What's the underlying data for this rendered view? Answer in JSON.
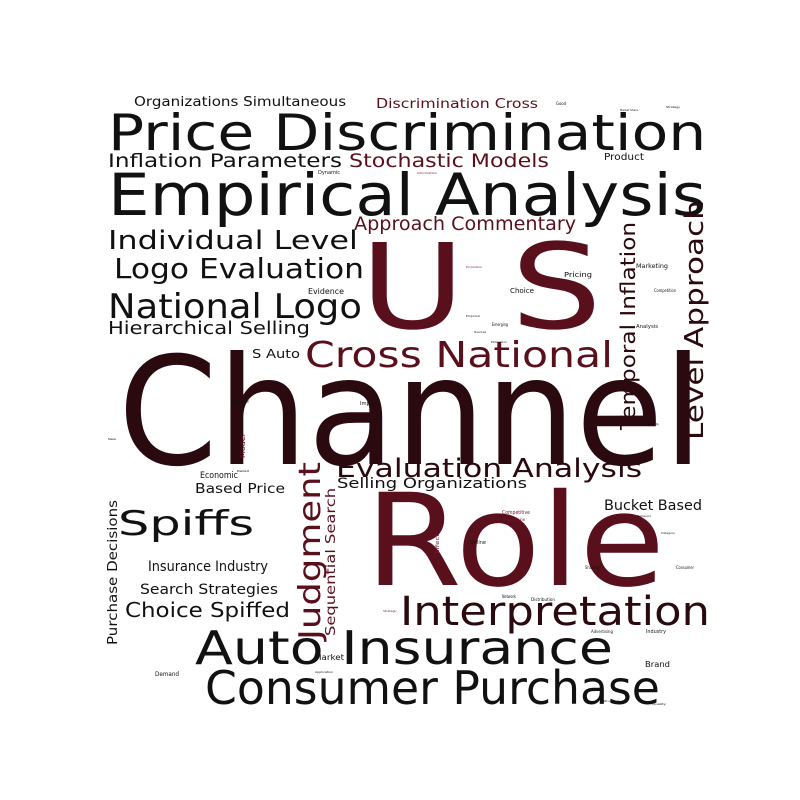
{
  "colors": {
    "black": "#111111",
    "dark": "#2a0a0f",
    "maroon": "#5a0f1c",
    "red": "#7a1426",
    "grey": "#555555"
  },
  "words": [
    {
      "text": "Channel",
      "color": "dark"
    },
    {
      "text": "Role",
      "color": "maroon"
    },
    {
      "text": "U S",
      "color": "maroon"
    },
    {
      "text": "Price Discrimination",
      "color": "black"
    },
    {
      "text": "Empirical Analysis",
      "color": "black"
    },
    {
      "text": "Consumer Purchase",
      "color": "black"
    },
    {
      "text": "Auto Insurance",
      "color": "black"
    },
    {
      "text": "Interpretation",
      "color": "dark"
    },
    {
      "text": "Cross National",
      "color": "maroon"
    },
    {
      "text": "Evaluation Analysis",
      "color": "dark"
    },
    {
      "text": "National Logo",
      "color": "black"
    },
    {
      "text": "Logo Evaluation",
      "color": "black"
    },
    {
      "text": "Individual Level",
      "color": "black"
    },
    {
      "text": "Spiffs",
      "color": "black"
    },
    {
      "text": "Judgment",
      "color": "maroon"
    },
    {
      "text": "Level Approach",
      "color": "dark"
    },
    {
      "text": "Temporal Inflation",
      "color": "dark"
    },
    {
      "text": "Approach Commentary",
      "color": "maroon"
    },
    {
      "text": "Inflation Parameters",
      "color": "black"
    },
    {
      "text": "Stochastic Models",
      "color": "maroon"
    },
    {
      "text": "Hierarchical Selling",
      "color": "black"
    },
    {
      "text": "Choice Spiffed",
      "color": "black"
    },
    {
      "text": "Selling Organizations",
      "color": "black"
    },
    {
      "text": "Sequential Search",
      "color": "maroon"
    },
    {
      "text": "Purchase Decisions",
      "color": "black"
    },
    {
      "text": "Insurance Industry",
      "color": "black"
    },
    {
      "text": "Search Strategies",
      "color": "black"
    },
    {
      "text": "Based Price",
      "color": "black"
    },
    {
      "text": "Bucket Based",
      "color": "black"
    },
    {
      "text": "Organizations Simultaneous",
      "color": "black"
    },
    {
      "text": "Discrimination Cross",
      "color": "maroon"
    },
    {
      "text": "S Auto",
      "color": "black"
    },
    {
      "text": "Product",
      "color": "black"
    },
    {
      "text": "Economic",
      "color": "black"
    },
    {
      "text": "Evidence",
      "color": "black"
    },
    {
      "text": "Choice",
      "color": "black"
    },
    {
      "text": "Pricing",
      "color": "black"
    },
    {
      "text": "Marketing",
      "color": "black"
    },
    {
      "text": "Analysis",
      "color": "black"
    },
    {
      "text": "Market",
      "color": "black"
    },
    {
      "text": "Brand",
      "color": "black"
    },
    {
      "text": "Demand",
      "color": "black"
    },
    {
      "text": "Industry",
      "color": "black"
    },
    {
      "text": "Model",
      "color": "maroon"
    },
    {
      "text": "Dynamic",
      "color": "black"
    },
    {
      "text": "Impact",
      "color": "black"
    },
    {
      "text": "Customer",
      "color": "black"
    },
    {
      "text": "Online",
      "color": "black"
    },
    {
      "text": "Competitive",
      "color": "red"
    },
    {
      "text": "Distribution",
      "color": "black"
    },
    {
      "text": "Sharing",
      "color": "black"
    },
    {
      "text": "Consumer",
      "color": "black"
    },
    {
      "text": "Competition",
      "color": "black"
    },
    {
      "text": "Effect",
      "color": "red"
    },
    {
      "text": "Advertising",
      "color": "black"
    },
    {
      "text": "Emerging",
      "color": "black"
    },
    {
      "text": "Network",
      "color": "black"
    },
    {
      "text": "Product Line",
      "color": "red"
    },
    {
      "text": "Good",
      "color": "black"
    },
    {
      "text": "Market Share",
      "color": "black"
    },
    {
      "text": "Strategy",
      "color": "black"
    },
    {
      "text": "Information",
      "color": "red"
    },
    {
      "text": "Promotion",
      "color": "red"
    },
    {
      "text": "Retail",
      "color": "black"
    },
    {
      "text": "New",
      "color": "black"
    },
    {
      "text": "Quality",
      "color": "black"
    },
    {
      "text": "Social",
      "color": "black"
    },
    {
      "text": "Empirical",
      "color": "black"
    },
    {
      "text": "Variety",
      "color": "black"
    },
    {
      "text": "Behavior",
      "color": "black"
    },
    {
      "text": "Category",
      "color": "black"
    },
    {
      "text": "Strategic",
      "color": "red"
    },
    {
      "text": "Application",
      "color": "black"
    },
    {
      "text": "Estimation",
      "color": "black"
    },
    {
      "text": "Structural",
      "color": "black"
    }
  ]
}
